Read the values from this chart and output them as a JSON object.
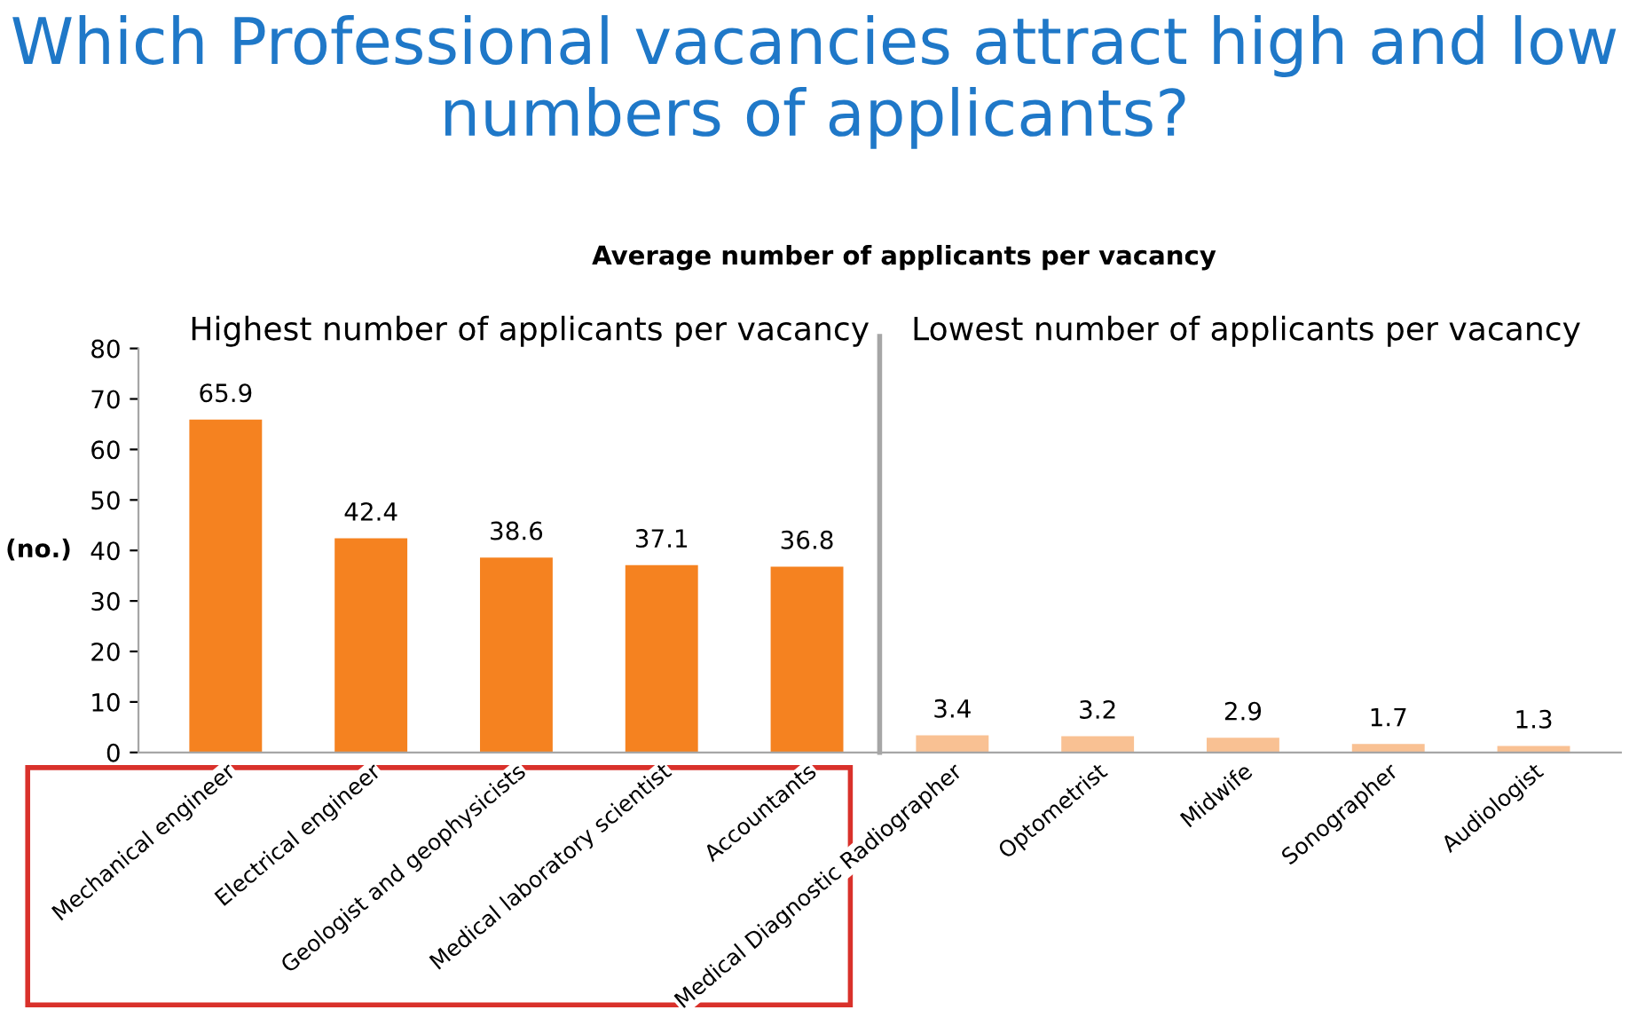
{
  "chart_data": {
    "type": "bar",
    "title": "Which Professional vacancies attract high and low numbers of applicants?",
    "subtitle": "Average number of applicants per vacancy",
    "ylabel": "(no.)",
    "annotations": [
      "Highest number of applicants per vacancy",
      "Lowest number of applicants per vacancy"
    ],
    "categories": [
      "Mechanical engineer",
      "Electrical engineer",
      "Geologist and geophysicists",
      "Medical laboratory scientist",
      "Accountants",
      "Medical Diagnostic Radiographer",
      "Optometrist",
      "Midwife",
      "Sonographer",
      "Audiologist"
    ],
    "values": [
      65.9,
      42.4,
      38.6,
      37.1,
      36.8,
      3.4,
      3.2,
      2.9,
      1.7,
      1.3
    ],
    "colors": [
      "#f58220",
      "#f58220",
      "#f58220",
      "#f58220",
      "#f58220",
      "#f9c193",
      "#f9c193",
      "#f9c193",
      "#f9c193",
      "#f9c193"
    ],
    "ylim": [
      0,
      80
    ],
    "yticks": [
      0,
      10,
      20,
      30,
      40,
      50,
      60,
      70,
      80
    ],
    "data_labels": true,
    "grid": false,
    "legend": false
  }
}
